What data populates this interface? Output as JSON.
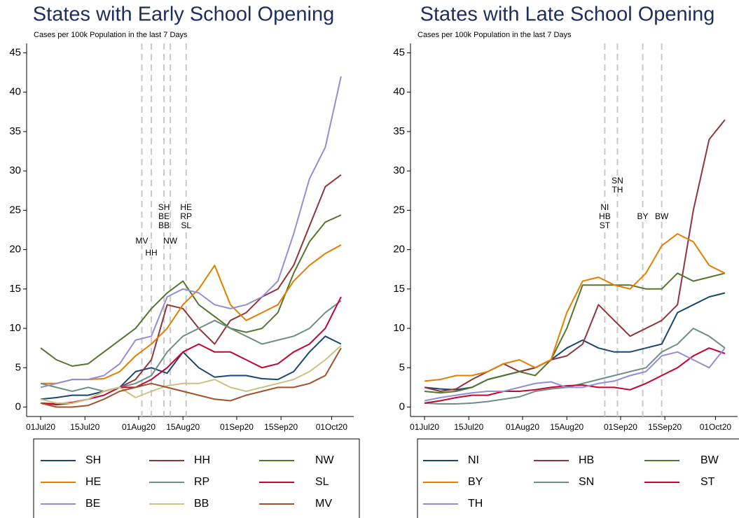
{
  "chart_data": [
    {
      "type": "line",
      "title": "States with Early School Opening",
      "subtitle": "Cases per 100k Population in the last 7 Days",
      "x": [
        "2020-07-01",
        "2020-07-06",
        "2020-07-11",
        "2020-07-16",
        "2020-07-21",
        "2020-07-26",
        "2020-07-31",
        "2020-08-05",
        "2020-08-10",
        "2020-08-15",
        "2020-08-20",
        "2020-08-25",
        "2020-08-30",
        "2020-09-04",
        "2020-09-09",
        "2020-09-14",
        "2020-09-19",
        "2020-09-24",
        "2020-09-29",
        "2020-10-04"
      ],
      "series": [
        {
          "name": "SH",
          "color": "#1a476f",
          "values": [
            1,
            1.2,
            1.5,
            1.5,
            2,
            2.5,
            4.5,
            5,
            4.3,
            7,
            5,
            3.8,
            4,
            4,
            3.6,
            3.5,
            4.5,
            7,
            9,
            8
          ]
        },
        {
          "name": "HH",
          "color": "#90353b",
          "values": [
            0.5,
            0.3,
            0.5,
            1,
            2,
            2.5,
            3.5,
            6,
            13,
            12.5,
            10,
            8,
            11,
            12,
            14,
            15,
            18,
            23,
            28,
            29.5
          ]
        },
        {
          "name": "NW",
          "color": "#55752f",
          "values": [
            7.5,
            6,
            5.2,
            5.5,
            7,
            8.5,
            10,
            12.5,
            14.5,
            16,
            13,
            11.5,
            10,
            9.5,
            10,
            12,
            17,
            21,
            23.5,
            24.4
          ]
        },
        {
          "name": "HE",
          "color": "#e37e00",
          "values": [
            3,
            3,
            3.5,
            3.5,
            3.6,
            4.5,
            6.5,
            8,
            10,
            13,
            15,
            18,
            13,
            11,
            12,
            13,
            16,
            18,
            19.5,
            20.6
          ]
        },
        {
          "name": "RP",
          "color": "#6e8e84",
          "values": [
            3,
            2.5,
            2,
            2.5,
            2,
            2.5,
            3,
            4,
            7,
            9,
            10,
            11,
            10,
            9,
            8,
            8.5,
            9,
            10,
            12,
            13.5
          ]
        },
        {
          "name": "SL",
          "color": "#c10534",
          "values": [
            0.5,
            0.4,
            0.6,
            1,
            1.5,
            2.5,
            2.5,
            3.5,
            5,
            7,
            8,
            7,
            7,
            6,
            5,
            5.5,
            7,
            8,
            10,
            14
          ]
        },
        {
          "name": "BE",
          "color": "#938dd2",
          "values": [
            2.5,
            3,
            3.5,
            3.5,
            4,
            5.5,
            8.5,
            9,
            14,
            15,
            14.5,
            13,
            12.5,
            13,
            14,
            16,
            22,
            29,
            33,
            42
          ]
        },
        {
          "name": "BB",
          "color": "#cac27e",
          "values": [
            1,
            0.5,
            0.5,
            1,
            2,
            2.5,
            1.2,
            2,
            2.7,
            3,
            3,
            3.5,
            2.5,
            2,
            2.5,
            3,
            3.5,
            4.5,
            6,
            7.8
          ]
        },
        {
          "name": "MV",
          "color": "#a0522d",
          "values": [
            0.5,
            0,
            0,
            0.2,
            1,
            2,
            2.5,
            3,
            2.5,
            2,
            1.5,
            1,
            0.8,
            1.5,
            2,
            2.5,
            2.5,
            3,
            4,
            7.5
          ]
        }
      ],
      "xlim": [
        "2020-06-27",
        "2020-10-08"
      ],
      "ylim": [
        -1.2,
        46.2
      ],
      "yticks": [
        0,
        5,
        10,
        15,
        20,
        25,
        30,
        35,
        40,
        45
      ],
      "xticks": [
        {
          "value": "2020-07-01",
          "label": "01Jul20"
        },
        {
          "value": "2020-07-15",
          "label": "15Jul20"
        },
        {
          "value": "2020-08-01",
          "label": "01Aug20"
        },
        {
          "value": "2020-08-15",
          "label": "15Aug20"
        },
        {
          "value": "2020-09-01",
          "label": "01Sep20"
        },
        {
          "value": "2020-09-15",
          "label": "15Sep20"
        },
        {
          "value": "2020-10-01",
          "label": "01Oct20"
        }
      ],
      "annotations": [
        {
          "x": "2020-08-02",
          "labels": [
            "MV"
          ]
        },
        {
          "x": "2020-08-05",
          "labels": [
            "HH"
          ]
        },
        {
          "x": "2020-08-09",
          "labels": [
            "SH",
            "BE",
            "BB"
          ]
        },
        {
          "x": "2020-08-11",
          "labels": [
            "NW"
          ]
        },
        {
          "x": "2020-08-16",
          "labels": [
            "HE",
            "RP",
            "SL"
          ]
        }
      ],
      "legend_position": "bottom"
    },
    {
      "type": "line",
      "title": "States with Late School Opening",
      "subtitle": "Cases per 100k Population in the last 7 Days",
      "x": [
        "2020-07-01",
        "2020-07-06",
        "2020-07-11",
        "2020-07-16",
        "2020-07-21",
        "2020-07-26",
        "2020-07-31",
        "2020-08-05",
        "2020-08-10",
        "2020-08-15",
        "2020-08-20",
        "2020-08-25",
        "2020-08-30",
        "2020-09-04",
        "2020-09-09",
        "2020-09-14",
        "2020-09-19",
        "2020-09-24",
        "2020-09-29",
        "2020-10-04"
      ],
      "series": [
        {
          "name": "NI",
          "color": "#1a476f",
          "values": [
            2.5,
            2.3,
            2.2,
            2.5,
            3.5,
            4,
            4.5,
            5,
            6,
            7.5,
            8.5,
            7.5,
            7,
            7,
            7.5,
            8,
            12,
            13,
            14,
            14.5
          ]
        },
        {
          "name": "HB",
          "color": "#90353b",
          "values": [
            2.5,
            2,
            2.3,
            3.5,
            4.5,
            5.5,
            4.5,
            5,
            6,
            6.5,
            8,
            13,
            11,
            9,
            10,
            11,
            13,
            25,
            34,
            36.5
          ]
        },
        {
          "name": "BW",
          "color": "#55752f",
          "values": [
            2,
            1.8,
            2,
            2.5,
            3.5,
            4,
            4.5,
            4,
            6,
            10,
            15.5,
            15.5,
            15.5,
            15.5,
            15,
            15,
            17,
            16,
            16.5,
            17
          ]
        },
        {
          "name": "BY",
          "color": "#e37e00",
          "values": [
            3.3,
            3.5,
            4,
            4,
            4.5,
            5.5,
            6,
            5,
            6,
            12,
            16,
            16.5,
            15.5,
            15,
            17,
            20.5,
            22,
            21,
            18,
            17
          ]
        },
        {
          "name": "SN",
          "color": "#6e8e84",
          "values": [
            0.5,
            0.4,
            0.4,
            0.5,
            0.7,
            1,
            1.3,
            2,
            2.3,
            2.5,
            3,
            3.5,
            4,
            4.5,
            5,
            7,
            8,
            10,
            9,
            7.5
          ]
        },
        {
          "name": "ST",
          "color": "#c10534",
          "values": [
            0.5,
            0.8,
            1.2,
            1.5,
            1.5,
            2,
            2,
            2.2,
            2.5,
            2.7,
            2.8,
            2.5,
            2.5,
            2.2,
            3,
            4,
            5,
            6.5,
            7.5,
            6.8
          ]
        },
        {
          "name": "TH",
          "color": "#938dd2",
          "values": [
            0.8,
            1.2,
            1.5,
            1.8,
            2,
            2,
            2.5,
            3,
            3.2,
            2.5,
            2.5,
            3,
            3.3,
            4,
            4.5,
            6.5,
            7,
            6,
            5,
            7.5
          ]
        }
      ],
      "xlim": [
        "2020-06-27",
        "2020-10-08"
      ],
      "ylim": [
        -1.2,
        46.2
      ],
      "yticks": [
        0,
        5,
        10,
        15,
        20,
        25,
        30,
        35,
        40,
        45
      ],
      "xticks": [
        {
          "value": "2020-07-01",
          "label": "01Jul20"
        },
        {
          "value": "2020-07-15",
          "label": "15Jul20"
        },
        {
          "value": "2020-08-01",
          "label": "01Aug20"
        },
        {
          "value": "2020-08-15",
          "label": "15Aug20"
        },
        {
          "value": "2020-09-01",
          "label": "01Sep20"
        },
        {
          "value": "2020-09-15",
          "label": "15Sep20"
        },
        {
          "value": "2020-10-01",
          "label": "01Oct20"
        }
      ],
      "annotations": [
        {
          "x": "2020-08-27",
          "labels": [
            "NI",
            "HB",
            "ST"
          ]
        },
        {
          "x": "2020-08-31",
          "labels": [
            "SN",
            "TH"
          ]
        },
        {
          "x": "2020-09-08",
          "labels": [
            "BY"
          ]
        },
        {
          "x": "2020-09-14",
          "labels": [
            "BW"
          ]
        }
      ],
      "legend_position": "bottom"
    }
  ]
}
